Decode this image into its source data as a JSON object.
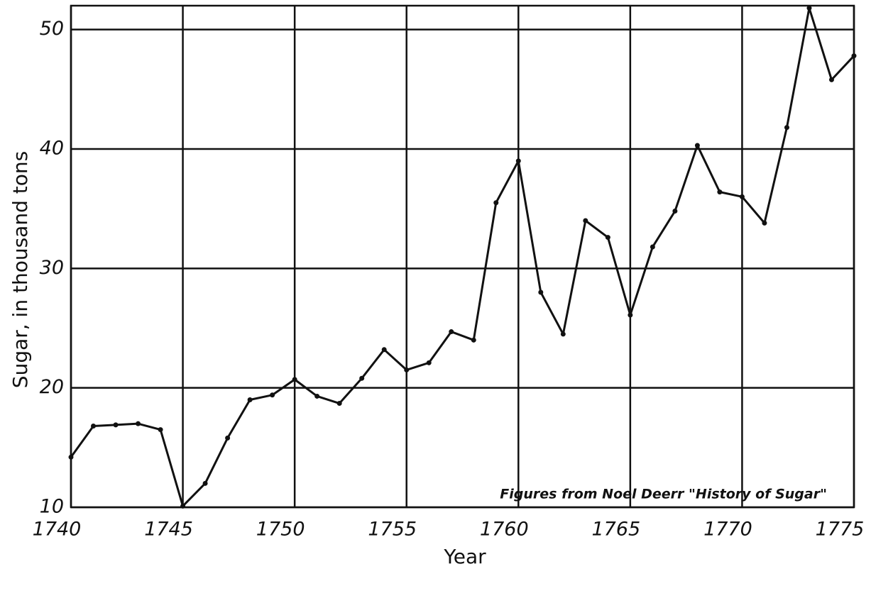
{
  "chart_data": {
    "type": "line",
    "x": [
      1740,
      1741,
      1742,
      1743,
      1744,
      1745,
      1746,
      1747,
      1748,
      1749,
      1750,
      1751,
      1752,
      1753,
      1754,
      1755,
      1756,
      1757,
      1758,
      1759,
      1760,
      1761,
      1762,
      1763,
      1764,
      1765,
      1766,
      1767,
      1768,
      1769,
      1770,
      1771,
      1772,
      1773,
      1774,
      1775
    ],
    "series": [
      {
        "color": "#111111",
        "values": [
          14.2,
          16.8,
          16.9,
          17.0,
          16.5,
          10.1,
          12.0,
          15.8,
          19.0,
          19.4,
          20.7,
          19.3,
          18.7,
          20.8,
          23.2,
          21.5,
          22.1,
          24.7,
          24.0,
          35.5,
          39.0,
          28.0,
          24.5,
          34.0,
          32.6,
          26.1,
          31.8,
          34.8,
          40.3,
          36.4,
          36.0,
          33.8,
          41.8,
          51.8,
          45.8,
          47.8
        ]
      }
    ],
    "xlabel": "Year",
    "ylabel": "Sugar, in thousand tons",
    "annotation": "Figures from Noel Deerr \"History of Sugar\"",
    "xlim": [
      1740,
      1775
    ],
    "ylim": [
      10,
      52
    ],
    "xticks": [
      1740,
      1745,
      1750,
      1755,
      1760,
      1765,
      1770,
      1775
    ],
    "yticks": [
      10,
      20,
      30,
      40,
      50
    ],
    "grid": true
  }
}
